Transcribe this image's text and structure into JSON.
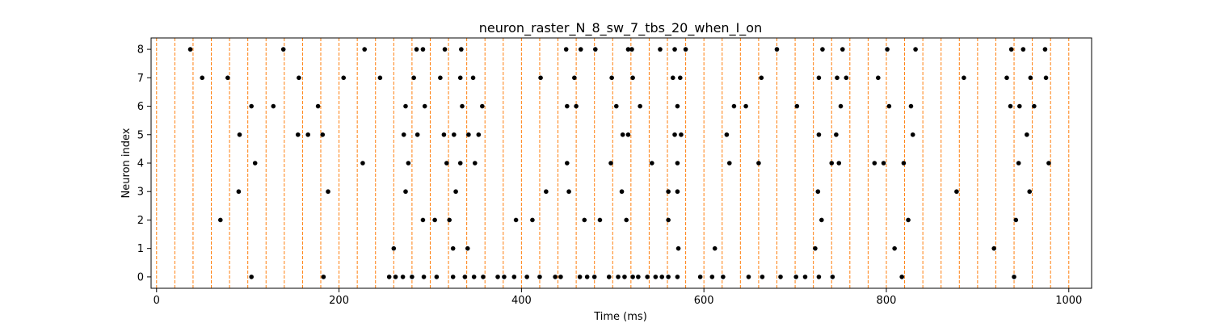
{
  "chart_data": {
    "type": "scatter",
    "title": "neuron_raster_N_8_sw_7_tbs_20_when_I_on",
    "xlabel": "Time (ms)",
    "ylabel": "Neuron index",
    "xlim": [
      -6,
      1025
    ],
    "ylim": [
      -0.4,
      8.4
    ],
    "xticks": [
      0,
      200,
      400,
      600,
      800,
      1000
    ],
    "yticks": [
      0,
      1,
      2,
      3,
      4,
      5,
      6,
      7,
      8
    ],
    "grid": false,
    "vlines": {
      "x": [
        0,
        20,
        40,
        60,
        80,
        100,
        120,
        140,
        160,
        180,
        200,
        220,
        240,
        260,
        280,
        300,
        320,
        340,
        360,
        380,
        400,
        420,
        440,
        460,
        480,
        500,
        520,
        540,
        560,
        580,
        600,
        620,
        640,
        660,
        680,
        700,
        720,
        740,
        760,
        780,
        800,
        820,
        840,
        860,
        880,
        900,
        920,
        940,
        960,
        980,
        1000
      ],
      "color": "#ff7f0e",
      "style": "dashed"
    },
    "spike_color": "#000000",
    "series": [
      {
        "neuron": 0,
        "x": [
          104,
          183,
          255,
          262,
          270,
          280,
          293,
          307,
          325,
          338,
          348,
          358,
          374,
          381,
          392,
          406,
          420,
          437,
          443,
          464,
          472,
          480,
          496,
          506,
          513,
          522,
          528,
          538,
          547,
          554,
          561,
          571,
          596,
          609,
          621,
          649,
          664,
          684,
          701,
          711,
          726,
          741,
          817,
          940
        ]
      },
      {
        "neuron": 1,
        "x": [
          260,
          325,
          341,
          572,
          612,
          722,
          809,
          918
        ]
      },
      {
        "neuron": 2,
        "x": [
          70,
          292,
          305,
          321,
          394,
          412,
          469,
          486,
          515,
          561,
          729,
          824,
          942
        ]
      },
      {
        "neuron": 3,
        "x": [
          90,
          188,
          273,
          328,
          427,
          452,
          510,
          561,
          571,
          725,
          877,
          957
        ]
      },
      {
        "neuron": 4,
        "x": [
          108,
          226,
          276,
          318,
          333,
          349,
          450,
          498,
          543,
          571,
          628,
          660,
          740,
          748,
          787,
          797,
          819,
          945,
          978
        ]
      },
      {
        "neuron": 5,
        "x": [
          91,
          155,
          166,
          182,
          271,
          286,
          315,
          326,
          342,
          353,
          511,
          517,
          568,
          575,
          625,
          726,
          745,
          829,
          954
        ]
      },
      {
        "neuron": 6,
        "x": [
          104,
          128,
          177,
          273,
          294,
          335,
          357,
          450,
          460,
          504,
          530,
          571,
          633,
          646,
          702,
          750,
          803,
          827,
          936,
          946,
          962
        ]
      },
      {
        "neuron": 7,
        "x": [
          50,
          78,
          156,
          205,
          245,
          282,
          311,
          333,
          347,
          421,
          458,
          499,
          522,
          566,
          574,
          663,
          726,
          746,
          756,
          791,
          885,
          932,
          958,
          975
        ]
      },
      {
        "neuron": 8,
        "x": [
          37,
          139,
          228,
          285,
          292,
          316,
          334,
          449,
          465,
          481,
          517,
          521,
          552,
          568,
          580,
          680,
          730,
          752,
          801,
          832,
          937,
          950,
          974
        ]
      }
    ]
  }
}
